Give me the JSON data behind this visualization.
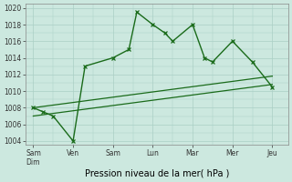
{
  "xlabel": "Pression niveau de la mer( hPa )",
  "x_labels": [
    "Sam\nDim",
    "Ven",
    "Sam",
    "Lun",
    "Mar",
    "Mer",
    "Jeu"
  ],
  "x_tick_pos": [
    0,
    1,
    2,
    3,
    4,
    5,
    6
  ],
  "ylim": [
    1003.5,
    1020.5
  ],
  "yticks": [
    1004,
    1006,
    1008,
    1010,
    1012,
    1014,
    1016,
    1018,
    1020
  ],
  "main_x": [
    0,
    0.25,
    0.5,
    1,
    1.3,
    2,
    2.4,
    2.6,
    3,
    3.3,
    3.5,
    4,
    4.3,
    4.5,
    5,
    5.5,
    6
  ],
  "main_y": [
    1008,
    1007.5,
    1007,
    1004,
    1013,
    1014,
    1015,
    1019.5,
    1018,
    1017,
    1016,
    1018,
    1014,
    1013.5,
    1016,
    1013.5,
    1010.5
  ],
  "trend1_x": [
    0,
    6
  ],
  "trend1_y": [
    1008.0,
    1011.8
  ],
  "trend2_x": [
    0,
    6
  ],
  "trend2_y": [
    1007.0,
    1010.8
  ],
  "bg_color": "#cce8df",
  "grid_color": "#aacfc5",
  "line_color": "#1a6b1a",
  "tick_label_fontsize": 5.5,
  "xlabel_fontsize": 7
}
